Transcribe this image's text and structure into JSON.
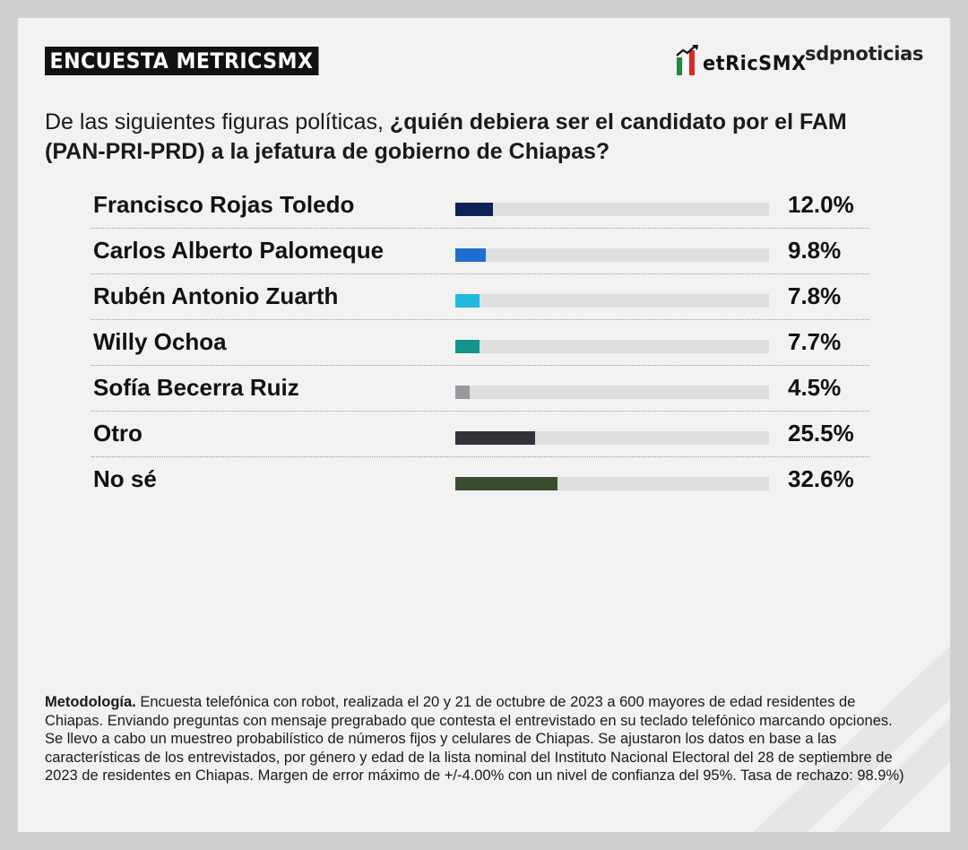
{
  "header": {
    "badge": "ENCUESTA METRICSMX",
    "logo_metrics": "etRicSMX",
    "logo_sdp": "sdpnoticias"
  },
  "question": {
    "normal": "De las siguientes figuras políticas, ",
    "bold": "¿quién debiera ser el candidato por el FAM (PAN-PRI-PRD) a la jefatura de gobierno de Chiapas?"
  },
  "chart_data": {
    "type": "bar",
    "orientation": "horizontal",
    "categories": [
      "Francisco Rojas Toledo",
      "Carlos Alberto Palomeque",
      "Rubén Antonio Zuarth",
      "Willy Ochoa",
      "Sofía Becerra Ruiz",
      "Otro",
      "No sé"
    ],
    "values": [
      12.0,
      9.8,
      7.8,
      7.7,
      4.5,
      25.5,
      32.6
    ],
    "value_labels": [
      "12.0%",
      "9.8%",
      "7.8%",
      "7.7%",
      "4.5%",
      "25.5%",
      "32.6%"
    ],
    "colors": [
      "#0d2257",
      "#1f6fd0",
      "#20b8de",
      "#14948e",
      "#9b979e",
      "#33313a",
      "#3a4c30"
    ],
    "track_color": "#dedede",
    "xlim": [
      0,
      100
    ],
    "grid": false,
    "legend": "none"
  },
  "methodology": {
    "label": "Metodología.",
    "text": " Encuesta telefónica con robot, realizada el 20 y 21 de octubre de 2023 a 600 mayores de edad residentes de Chiapas. Enviando preguntas con mensaje pregrabado que contesta el entrevistado en su teclado telefónico marcando opciones. Se llevo a cabo un muestreo probabilístico de números fijos y celulares de Chiapas. Se ajustaron los datos en base a las características de los entrevistados, por género y edad de la lista nominal del Instituto Nacional Electoral del 28 de septiembre de 2023 de residentes en Chiapas. Margen de error máximo de +/-4.00% con un nivel de confianza del 95%. Tasa de rechazo: 98.9%)"
  },
  "colors": {
    "card_background": "#f2f2f2",
    "badge_background": "#111111",
    "flag_green": "#1f8a3b",
    "flag_red": "#d62a2a"
  },
  "icons": [
    "metricsmx-logo-icon"
  ]
}
